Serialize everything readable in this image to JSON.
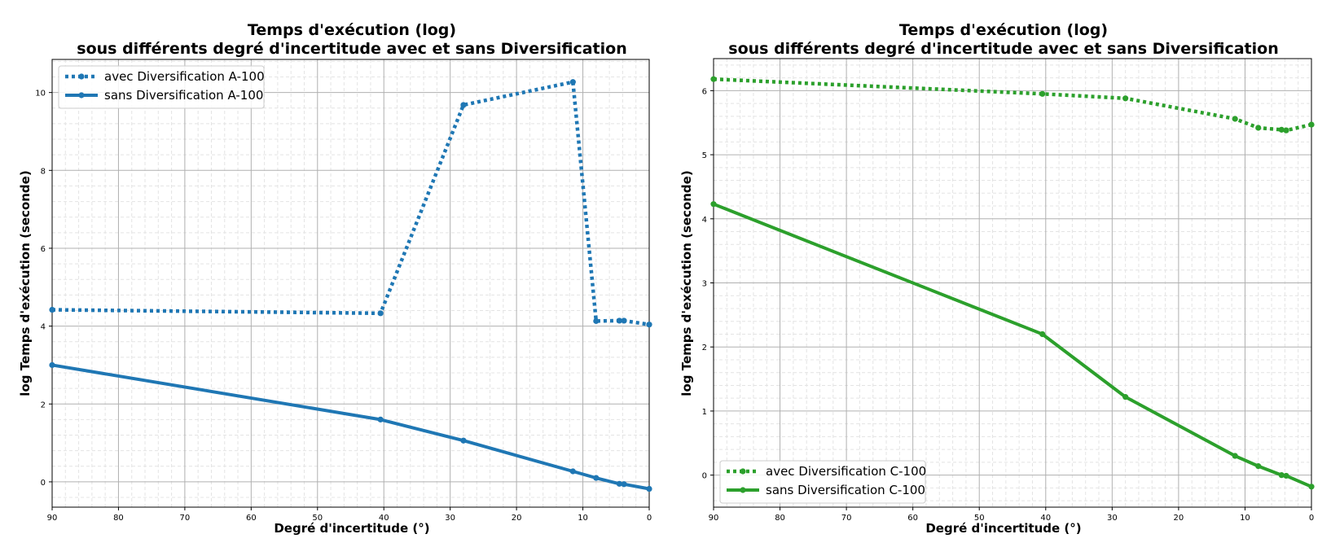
{
  "chart_data": [
    {
      "type": "line",
      "title": [
        "Temps d'exécution (log)",
        "sous différents degré d'incertitude avec et sans Diversification"
      ],
      "xlabel": "Degré d'incertitude (°)",
      "ylabel": "log Temps d'exécution (seconde)",
      "xlim": [
        90,
        0
      ],
      "ylim": [
        -0.65,
        10.85
      ],
      "xticks": [
        "90",
        "80",
        "70",
        "60",
        "50",
        "40",
        "30",
        "20",
        "10",
        "0"
      ],
      "yticks": [
        "0",
        "2",
        "4",
        "6",
        "8",
        "10"
      ],
      "grid": true,
      "legend_position": "top-left",
      "color": "#1f77b4",
      "series": [
        {
          "name": "avec Diversification A-100",
          "style": "dotted",
          "x": [
            90,
            40.5,
            28,
            11.5,
            8,
            4.5,
            3.8,
            0
          ],
          "y": [
            4.42,
            4.33,
            9.68,
            10.27,
            4.13,
            4.14,
            4.14,
            4.04
          ]
        },
        {
          "name": "sans Diversification A-100",
          "style": "solid",
          "x": [
            90,
            40.5,
            28,
            11.5,
            8,
            4.5,
            3.8,
            0
          ],
          "y": [
            3.0,
            1.6,
            1.06,
            0.27,
            0.1,
            -0.05,
            -0.06,
            -0.18
          ]
        }
      ]
    },
    {
      "type": "line",
      "title": [
        "Temps d'exécution (log)",
        "sous différents degré d'incertitude avec et sans Diversification"
      ],
      "xlabel": "Degré d'incertitude (°)",
      "ylabel": "log Temps d'exécution (seconde)",
      "xlim": [
        90,
        0
      ],
      "ylim": [
        -0.5,
        6.5
      ],
      "xticks": [
        "90",
        "80",
        "70",
        "60",
        "50",
        "40",
        "30",
        "20",
        "10",
        "0"
      ],
      "yticks": [
        "0",
        "1",
        "2",
        "3",
        "4",
        "5",
        "6"
      ],
      "grid": true,
      "legend_position": "bottom-left",
      "color": "#2ca02c",
      "series": [
        {
          "name": "avec Diversification C-100",
          "style": "dotted",
          "x": [
            90,
            40.5,
            28,
            11.5,
            8,
            4.5,
            3.8,
            0
          ],
          "y": [
            6.18,
            5.95,
            5.88,
            5.56,
            5.42,
            5.39,
            5.38,
            5.47
          ]
        },
        {
          "name": "sans Diversification C-100",
          "style": "solid",
          "x": [
            90,
            40.5,
            28,
            11.5,
            8,
            4.5,
            3.8,
            0
          ],
          "y": [
            4.23,
            2.2,
            1.22,
            0.3,
            0.14,
            0.0,
            -0.01,
            -0.18
          ]
        }
      ]
    }
  ]
}
